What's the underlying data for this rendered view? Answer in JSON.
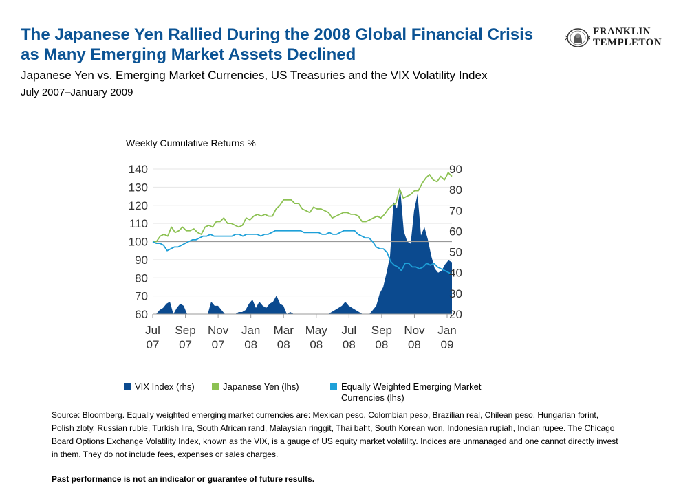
{
  "header": {
    "title": "The Japanese Yen Rallied During the 2008 Global Financial Crisis as Many Emerging Market Assets Declined",
    "subtitle": "Japanese Yen vs. Emerging Market Currencies, US Treasuries and the VIX Volatility Index",
    "date_range": "July 2007–January 2009"
  },
  "logo": {
    "line1": "FRANKLIN",
    "line2": "TEMPLETON"
  },
  "chart_data": {
    "type": "line",
    "ylabel": "Weekly Cumulative Returns %",
    "ylim_left": [
      60,
      140
    ],
    "yticks_left": [
      60,
      70,
      80,
      90,
      100,
      110,
      120,
      130,
      140
    ],
    "ylim_right": [
      20,
      90
    ],
    "yticks_right": [
      20,
      30,
      40,
      50,
      60,
      70,
      80,
      90
    ],
    "xtick_labels": [
      [
        "Jul",
        "07"
      ],
      [
        "Sep",
        "07"
      ],
      [
        "Nov",
        "07"
      ],
      [
        "Jan",
        "08"
      ],
      [
        "Mar",
        "08"
      ],
      [
        "May",
        "08"
      ],
      [
        "Jul",
        "08"
      ],
      [
        "Sep",
        "08"
      ],
      [
        "Nov",
        "08"
      ],
      [
        "Jan",
        "09"
      ]
    ],
    "reference_line": 100,
    "colors": {
      "vix": "#0b4a8f",
      "yen": "#8cc152",
      "em": "#1ea0d8",
      "axis": "#999999"
    },
    "series": [
      {
        "name": "VIX Index (rhs)",
        "type": "area",
        "axis": "right",
        "values": [
          17,
          18,
          22,
          23,
          25,
          26,
          20,
          23,
          25,
          24,
          19,
          17,
          16,
          16,
          18,
          17,
          20,
          26,
          24,
          24,
          22,
          20,
          19,
          17,
          18,
          21,
          21,
          22,
          25,
          27,
          23,
          26,
          24,
          23,
          25,
          26,
          29,
          25,
          24,
          20,
          21,
          17,
          18,
          17,
          17,
          16,
          18,
          17,
          16,
          16,
          17,
          20,
          21,
          22,
          23,
          24,
          26,
          24,
          23,
          22,
          21,
          19,
          19,
          20,
          22,
          24,
          30,
          33,
          40,
          48,
          74,
          71,
          80,
          60,
          55,
          54,
          70,
          78,
          58,
          62,
          56,
          48,
          42,
          40,
          41,
          44,
          46,
          45
        ]
      },
      {
        "name": "Japanese Yen (lhs)",
        "type": "line",
        "axis": "left",
        "values": [
          100,
          100,
          103,
          104,
          103,
          108,
          105,
          106,
          108,
          106,
          106,
          107,
          105,
          104,
          108,
          109,
          108,
          111,
          111,
          113,
          110,
          110,
          109,
          108,
          109,
          113,
          112,
          114,
          115,
          114,
          115,
          114,
          114,
          118,
          120,
          123,
          123,
          123,
          121,
          121,
          118,
          117,
          116,
          119,
          118,
          118,
          117,
          116,
          113,
          114,
          115,
          116,
          116,
          115,
          115,
          114,
          111,
          111,
          112,
          113,
          114,
          113,
          115,
          118,
          120,
          121,
          129,
          124,
          125,
          126,
          128,
          128,
          132,
          135,
          137,
          134,
          133,
          136,
          134,
          138,
          136
        ]
      },
      {
        "name": "Equally Weighted Emerging Market Currencies (lhs)",
        "type": "line",
        "axis": "left",
        "values": [
          100,
          99,
          99,
          98,
          95,
          96,
          97,
          97,
          98,
          99,
          100,
          101,
          101,
          102,
          103,
          103,
          104,
          103,
          103,
          103,
          103,
          103,
          103,
          104,
          104,
          103,
          104,
          104,
          104,
          104,
          103,
          104,
          104,
          105,
          106,
          106,
          106,
          106,
          106,
          106,
          106,
          106,
          105,
          105,
          105,
          105,
          105,
          104,
          104,
          105,
          104,
          104,
          105,
          106,
          106,
          106,
          106,
          104,
          103,
          102,
          102,
          100,
          97,
          96,
          96,
          94,
          89,
          87,
          86,
          84,
          88,
          88,
          86,
          86,
          85,
          86,
          88,
          87,
          88,
          86,
          85,
          84,
          83,
          82
        ]
      }
    ],
    "legend_position": "bottom"
  },
  "legend": [
    {
      "label": "VIX Index (rhs)",
      "color": "#0b4a8f"
    },
    {
      "label": "Japanese Yen (lhs)",
      "color": "#8cc152"
    },
    {
      "label": "Equally Weighted Emerging Market Currencies (lhs)",
      "color": "#1ea0d8"
    }
  ],
  "footer": {
    "source": "Source: Bloomberg. Equally weighted emerging market currencies are: Mexican peso, Colombian peso, Brazilian real, Chilean peso, Hungarian forint, Polish zloty, Russian ruble, Turkish lira, South African rand, Malaysian ringgit, Thai baht, South Korean won, Indonesian rupiah, Indian rupee. The Chicago Board Options Exchange Volatility Index, known as the VIX, is a gauge of US equity market volatility. Indices are unmanaged and one cannot directly invest in them. They do not include fees, expenses or sales charges.",
    "disclaimer": "Past performance is not an indicator or guarantee of future results."
  }
}
